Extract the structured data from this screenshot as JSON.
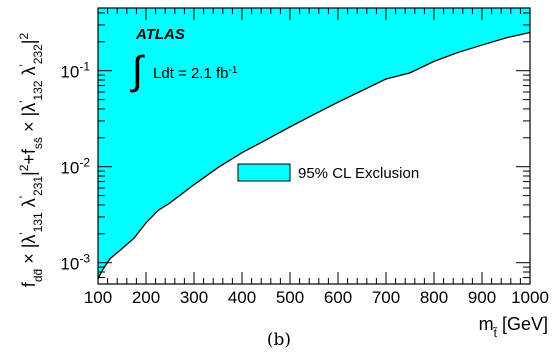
{
  "chart_data": {
    "type": "area",
    "title": "",
    "xlabel": "m",
    "xlabel_sub": "t̃",
    "xlabel_unit": " [GeV]",
    "ylabel": "f_{dd̄} × |λ'_{131} λ'_{231}|² + f_{ss̄} × |λ'_{132} λ'_{232}|²",
    "ylabel_parts": {
      "p1": "f",
      "p1sub": "dd̄",
      "p2": " × |λ",
      "p2sup": "'",
      "p2sub": "131",
      "p3": " λ",
      "p3sup": "'",
      "p3sub": "231",
      "p4": "|",
      "p4sup": "2",
      "p5": "+f",
      "p5sub": "ss̄",
      "p6": " × |λ",
      "p6sup": "'",
      "p6sub": "132",
      "p7": " λ",
      "p7sup": "'",
      "p7sub": "232",
      "p8": "|",
      "p8sup": "2"
    },
    "xlim": [
      100,
      1000
    ],
    "ylim": [
      0.0006,
      0.45
    ],
    "yscale": "log",
    "x_ticks": [
      100,
      200,
      300,
      400,
      500,
      600,
      700,
      800,
      900,
      1000
    ],
    "x_tick_labels": [
      "100",
      "200",
      "300",
      "400",
      "500",
      "600",
      "700",
      "800",
      "900",
      "1000"
    ],
    "y_ticks": [
      0.001,
      0.01,
      0.1
    ],
    "y_tick_labels": [
      {
        "base": "10",
        "exp": "-3"
      },
      {
        "base": "10",
        "exp": "-2"
      },
      {
        "base": "10",
        "exp": "-1"
      }
    ],
    "series": [
      {
        "name": "95% CL Exclusion",
        "color": "#00ffff",
        "x": [
          100,
          110,
          125,
          150,
          175,
          200,
          225,
          250,
          300,
          350,
          400,
          450,
          500,
          550,
          600,
          650,
          700,
          750,
          800,
          850,
          900,
          950,
          1000
        ],
        "y": [
          0.00068,
          0.00085,
          0.0011,
          0.0014,
          0.0018,
          0.0026,
          0.0035,
          0.0042,
          0.0065,
          0.0098,
          0.014,
          0.019,
          0.026,
          0.035,
          0.047,
          0.062,
          0.082,
          0.095,
          0.125,
          0.155,
          0.185,
          0.22,
          0.25
        ]
      }
    ],
    "annotations": {
      "experiment": "ATLAS",
      "lumi_prefix": "Ldt = 2.1 fb",
      "lumi_exp": "-1"
    },
    "legend_position": "center-right",
    "grid": false
  },
  "caption": "(b)"
}
